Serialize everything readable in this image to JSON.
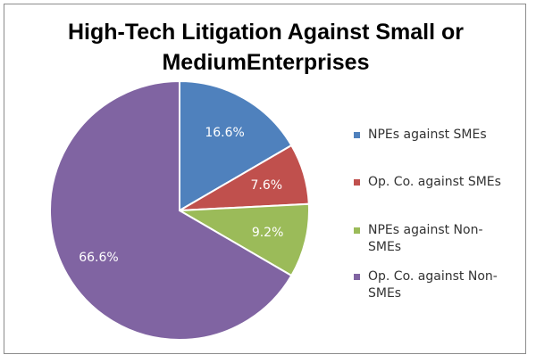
{
  "chart_data": {
    "type": "pie",
    "title": "High-Tech Litigation Against Small or MediumEnterprises",
    "title_lines": [
      "High-Tech Litigation Against Small or",
      "MediumEnterprises"
    ],
    "categories": [
      "NPEs against SMEs",
      "Op. Co. against SMEs",
      "NPEs against Non-SMEs",
      "Op. Co. against Non-SMEs"
    ],
    "values": [
      16.6,
      7.6,
      9.2,
      66.6
    ],
    "value_labels": [
      "16.6%",
      "7.6%",
      "9.2%",
      "66.6%"
    ],
    "colors": [
      "#4f81bd",
      "#c0504d",
      "#9bbb59",
      "#8064a2"
    ],
    "legend_position": "right"
  },
  "legend": {
    "items": [
      {
        "lines": [
          "NPEs against SMEs"
        ]
      },
      {
        "lines": [
          "Op. Co. against SMEs"
        ]
      },
      {
        "lines": [
          "NPEs against Non-",
          "SMEs"
        ]
      },
      {
        "lines": [
          "Op. Co. against Non-",
          "SMEs"
        ]
      }
    ]
  }
}
